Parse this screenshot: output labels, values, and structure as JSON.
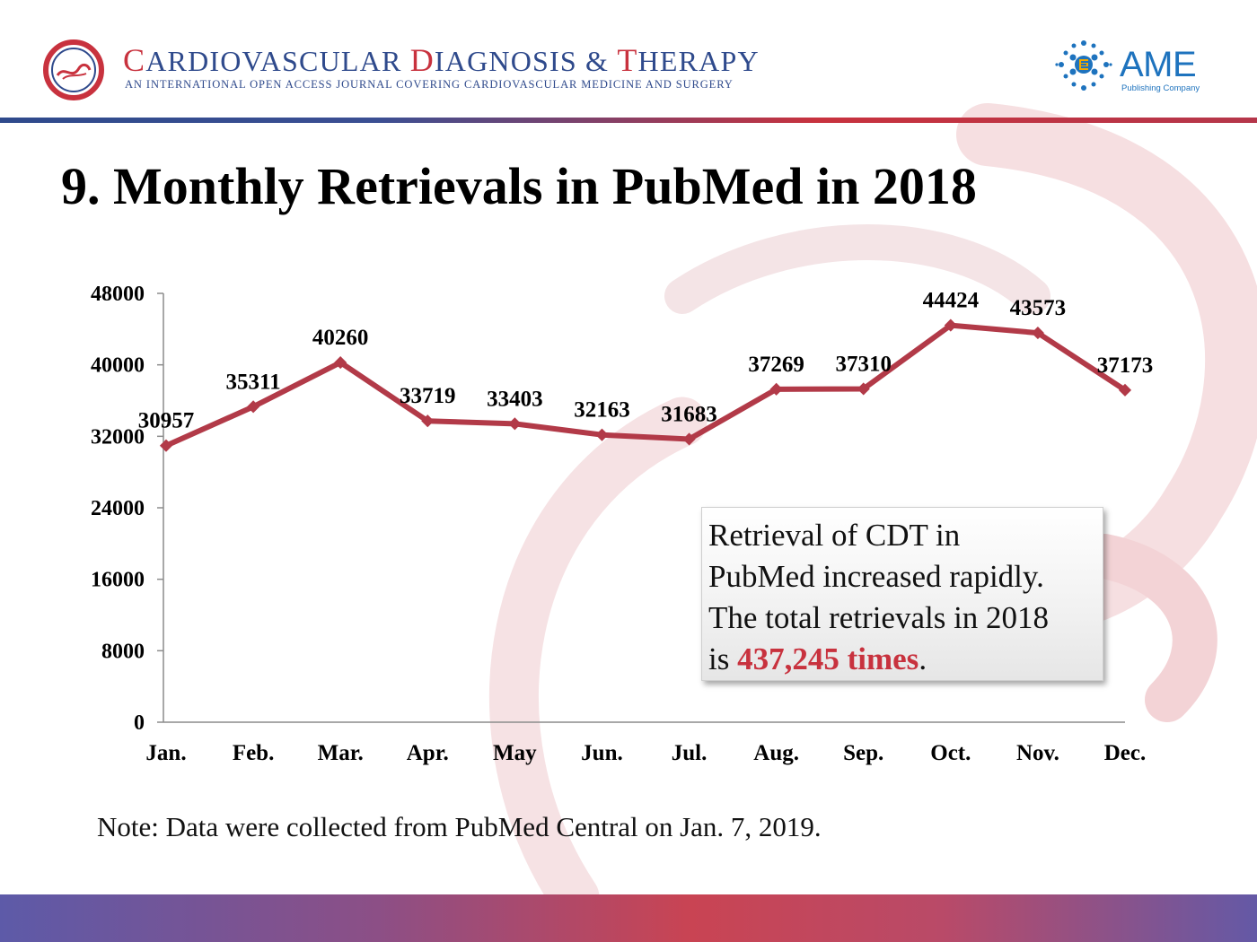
{
  "header": {
    "journal_title_parts": [
      {
        "cap": "C",
        "rest": "ARDIOVASCULAR "
      },
      {
        "cap": "D",
        "rest": "IAGNOSIS & "
      },
      {
        "cap": "T",
        "rest": "HERAPY"
      }
    ],
    "journal_subtitle": "AN INTERNATIONAL OPEN ACCESS JOURNAL COVERING CARDIOVASCULAR MEDICINE AND SURGERY",
    "publisher_name": "AME",
    "publisher_sub": "Publishing Company"
  },
  "slide_title": "9. Monthly Retrievals in PubMed in 2018",
  "chart_data": {
    "type": "line",
    "title": "",
    "xlabel": "",
    "ylabel": "",
    "categories": [
      "Jan.",
      "Feb.",
      "Mar.",
      "Apr.",
      "May",
      "Jun.",
      "Jul.",
      "Aug.",
      "Sep.",
      "Oct.",
      "Nov.",
      "Dec."
    ],
    "series": [
      {
        "values": [
          30957,
          35311,
          40260,
          33719,
          33403,
          32163,
          31683,
          37269,
          37310,
          44424,
          43573,
          37173
        ],
        "color": "#b23a48"
      }
    ],
    "y_ticks": [
      0,
      8000,
      16000,
      24000,
      32000,
      40000,
      48000
    ],
    "ylim": [
      0,
      48000
    ],
    "grid": false,
    "legend": "none",
    "data_labels": true
  },
  "callout": {
    "lines": [
      "Retrieval of CDT in",
      "PubMed increased rapidly.",
      "The total retrievals in 2018"
    ],
    "last_line_prefix": "is ",
    "highlight": "437,245 times",
    "last_line_suffix": "."
  },
  "note": "Note: Data were collected from PubMed Central on Jan. 7, 2019.",
  "colors": {
    "brand_blue": "#2f4a8c",
    "brand_red": "#c8323e",
    "line": "#b23a48",
    "ame_blue": "#1e73be"
  },
  "icons": {
    "journal_logo": "cdt-heart-swirl-logo",
    "publisher_logo": "ame-dot-globe-logo"
  }
}
